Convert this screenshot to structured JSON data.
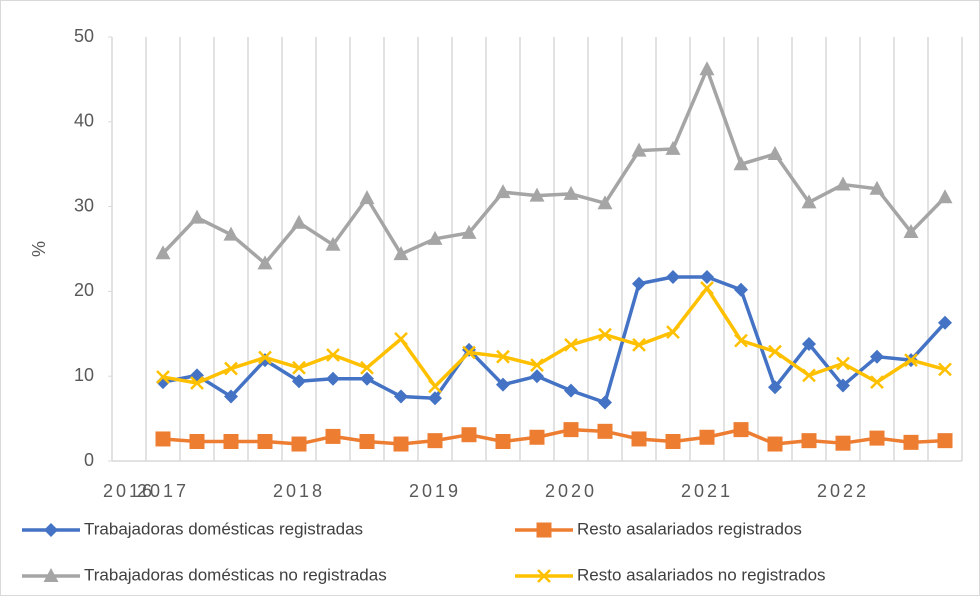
{
  "chart_data": {
    "type": "line",
    "y_label": "%",
    "categories": [
      "2016",
      "2017",
      null,
      null,
      null,
      "2018",
      null,
      null,
      null,
      "2019",
      null,
      null,
      null,
      "2020",
      null,
      null,
      null,
      "2021",
      null,
      null,
      null,
      "2022",
      null,
      null,
      null
    ],
    "ylim": [
      0,
      50
    ],
    "yticks": [
      0,
      10,
      20,
      30,
      40,
      50
    ],
    "grid": "x",
    "series": [
      {
        "name": "Trabajadoras domésticas registradas",
        "color": "#4472c4",
        "marker": "diamond",
        "values": [
          null,
          9.3,
          10.1,
          7.6,
          11.9,
          9.4,
          9.7,
          9.7,
          7.6,
          7.4,
          13.1,
          9.0,
          10.0,
          8.3,
          6.9,
          20.9,
          21.7,
          21.7,
          20.2,
          8.7,
          13.8,
          8.9,
          12.3,
          11.9,
          16.3
        ]
      },
      {
        "name": "Resto asalariados registrados",
        "color": "#ed7d31",
        "marker": "square",
        "values": [
          null,
          2.6,
          2.3,
          2.3,
          2.3,
          2.0,
          2.9,
          2.3,
          2.0,
          2.4,
          3.1,
          2.3,
          2.8,
          3.7,
          3.5,
          2.6,
          2.3,
          2.8,
          3.7,
          2.0,
          2.4,
          2.1,
          2.7,
          2.2,
          2.4
        ]
      },
      {
        "name": "Trabajadoras domésticas no registradas",
        "color": "#a5a5a5",
        "marker": "triangle",
        "values": [
          null,
          24.5,
          28.7,
          26.7,
          23.3,
          28.1,
          25.5,
          31.0,
          24.4,
          26.2,
          26.9,
          31.7,
          31.3,
          31.5,
          30.4,
          36.6,
          36.8,
          46.2,
          35.0,
          36.2,
          30.5,
          32.6,
          32.1,
          27.0,
          31.1
        ]
      },
      {
        "name": "Resto asalariados no registrados",
        "color": "#ffc000",
        "marker": "x",
        "values": [
          null,
          9.9,
          9.2,
          10.9,
          12.2,
          11.0,
          12.5,
          11.0,
          14.4,
          8.8,
          12.8,
          12.3,
          11.3,
          13.7,
          14.9,
          13.7,
          15.2,
          20.4,
          14.2,
          12.9,
          10.1,
          11.5,
          9.3,
          11.9,
          10.8
        ]
      }
    ]
  }
}
